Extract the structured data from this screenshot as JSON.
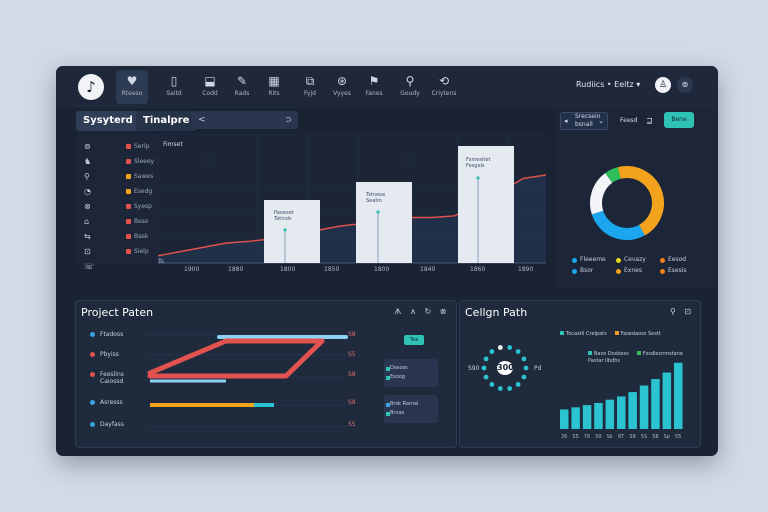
{
  "app": {
    "logo_glyph": "♪",
    "user_label": "Rudiics • Eeitz",
    "user_caret": "▾",
    "avatar_glyph": "♙",
    "menu_glyph": "⊚"
  },
  "toolbar": [
    {
      "icon": "♥",
      "label": "Rteeso",
      "name": "heart-icon"
    },
    {
      "icon": "▯",
      "label": "Saitd",
      "name": "book-icon"
    },
    {
      "icon": "⬓",
      "label": "Codd",
      "name": "box-icon"
    },
    {
      "icon": "✎",
      "label": "Rads",
      "name": "paint-icon"
    },
    {
      "icon": "▦",
      "label": "Rits",
      "name": "grid-icon"
    },
    {
      "icon": "⧉",
      "label": "Fyjd",
      "name": "window-icon"
    },
    {
      "icon": "⊛",
      "label": "Vyyes",
      "name": "globe-icon"
    },
    {
      "icon": "⚑",
      "label": "Fanes",
      "name": "flag-icon"
    },
    {
      "icon": "⚲",
      "label": "Goudy",
      "name": "pin-icon"
    },
    {
      "icon": "⟲",
      "label": "Criytens",
      "name": "refresh-icon"
    }
  ],
  "tabs": [
    {
      "label": "Sysyterd"
    },
    {
      "label": "Tinalpre"
    }
  ],
  "search": {
    "text": "<",
    "right": "⊃"
  },
  "side_list": [
    {
      "icon": "⊚",
      "label": "Serlp",
      "color": "#e2524e"
    },
    {
      "icon": "♞",
      "label": "Sleeey",
      "color": "#e2524e"
    },
    {
      "icon": "⚲",
      "label": "Sawes",
      "color": "#f2a21d"
    },
    {
      "icon": "◔",
      "label": "Esedg",
      "color": "#f2a21d"
    },
    {
      "icon": "⊗",
      "label": "Syesp",
      "color": "#e2524e"
    },
    {
      "icon": "⌂",
      "label": "Beso",
      "color": "#e2524e"
    },
    {
      "icon": "⇆",
      "label": "Bask",
      "color": "#e2524e"
    },
    {
      "icon": "⊡",
      "label": "Sielp",
      "color": "#e2524e"
    },
    {
      "icon": "☏",
      "label": "",
      "color": "#e2524e"
    }
  ],
  "timeline": {
    "title": "Fimset",
    "y_label": "ds",
    "x_ticks": [
      "1900",
      "1880",
      "1800",
      "1850",
      "1800",
      "1840",
      "1860",
      "1890"
    ],
    "cards": [
      {
        "line1": "Paoeset",
        "line2": "Tatinds"
      },
      {
        "line1": "Tstneoe",
        "line2": "Seatin"
      },
      {
        "line1": "Fsmesitet",
        "line2": "Fesgels"
      }
    ],
    "series_color": "#e2524e"
  },
  "donut": {
    "dropdown_a": "◂",
    "dropdown_line1": "Srecsein",
    "dropdown_line2": "bsnall",
    "dropdown_c": "⌄",
    "small_label": "Feesd",
    "icon_label": "⊒",
    "button": "Bene",
    "segments": [
      {
        "value": 0.42,
        "color": "#f2a21d"
      },
      {
        "value": 0.22,
        "color": "#1aa7ef"
      },
      {
        "value": 0.06,
        "color": "#1aa7ef"
      },
      {
        "value": 0.2,
        "color": "#f4f5f8"
      },
      {
        "value": 0.06,
        "color": "#2fbf5a"
      },
      {
        "value": 0.04,
        "color": "#f2a21d"
      }
    ],
    "legend": [
      {
        "label": "Fleeeme",
        "color": "#1aa7ef"
      },
      {
        "label": "Cevazy",
        "color": "#e9d61c"
      },
      {
        "label": "Eesod",
        "color": "#f2811d"
      },
      {
        "label": "Bsor",
        "color": "#1aa7ef"
      },
      {
        "label": "Exnes",
        "color": "#f2a21d"
      },
      {
        "label": "Esesis",
        "color": "#f2811d"
      }
    ]
  },
  "project": {
    "title": "Project Paten",
    "icons": [
      "ᗑ",
      "∧",
      "↻",
      "⊗"
    ],
    "rows": [
      {
        "label": "Ftadoss",
        "color": "#3aa4e0",
        "value": "S8"
      },
      {
        "label": "Pbyiss",
        "color": "#e2524e",
        "value": "S5"
      },
      {
        "label": "Feeslins\nCaiossd",
        "color": "#e2524e",
        "value": "S8"
      },
      {
        "label": "Asresss",
        "color": "#3aa4e0",
        "value": "S8"
      },
      {
        "label": "Dayfass",
        "color": "#3aa4e0",
        "value": "S5"
      }
    ],
    "button": "Tea",
    "card1": [
      {
        "label": "Dasoss",
        "color": "#2fc1b3"
      },
      {
        "label": "Esoog",
        "color": "#2fc1b3"
      }
    ],
    "card2": [
      {
        "label": "Brsk Ramal",
        "color": "#3aa4e0"
      },
      {
        "label": "Brvas",
        "color": "#2fc1b3"
      }
    ]
  },
  "cellpath": {
    "title": "Cellgn Path",
    "icons": [
      "⚲",
      "⊡"
    ],
    "center_value": "300",
    "left_value": "S90",
    "right_value": "Pd",
    "legend_top": [
      {
        "label": "Tocastil Crelpats",
        "color": "#2fc1b3"
      },
      {
        "label": "Fasedaoss Sestt",
        "color": "#f2a21d"
      }
    ],
    "legend_bottom": [
      {
        "label": "Baso Dosbess",
        "color": "#2fc1b3"
      },
      {
        "label": "Fssdlesnmstane",
        "color": "#2fbf5a"
      }
    ],
    "extra_line": "Pastar llbdhs",
    "bar_values": [
      18,
      20,
      22,
      24,
      27,
      30,
      34,
      40,
      46,
      52,
      61
    ],
    "bar_labels": [
      "26",
      "S5",
      "76",
      "50",
      "Sk",
      "6T",
      "S8",
      "5S",
      "58",
      "Sp",
      "55"
    ],
    "bar_color": "#2ac3cf"
  },
  "chart_data": {
    "type": "area",
    "x": [
      0,
      1,
      2,
      3,
      4,
      5,
      6,
      7,
      8,
      9,
      10,
      11,
      12,
      13,
      14,
      15,
      16,
      17
    ],
    "values": [
      0.5,
      1,
      1.5,
      2,
      2.2,
      2.5,
      3,
      3.5,
      4,
      4.3,
      4.6,
      5,
      5,
      5.2,
      6.5,
      8,
      9.6,
      10
    ]
  }
}
